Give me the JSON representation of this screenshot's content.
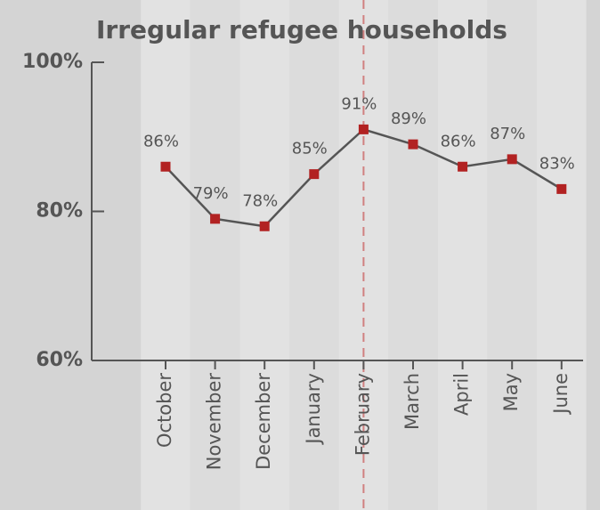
{
  "chart_data": {
    "type": "line",
    "title": "Irregular refugee households",
    "categories": [
      "October",
      "November",
      "December",
      "January",
      "February",
      "March",
      "April",
      "May",
      "June"
    ],
    "values": [
      86,
      79,
      78,
      85,
      91,
      89,
      86,
      87,
      83
    ],
    "value_labels": [
      "86%",
      "79%",
      "78%",
      "85%",
      "91%",
      "89%",
      "86%",
      "87%",
      "83%"
    ],
    "color": "#555555",
    "marker_color": "#b22222",
    "ylim": [
      60,
      100
    ],
    "yticks": [
      {
        "value": 60,
        "label": "60%"
      },
      {
        "value": 80,
        "label": "80%"
      },
      {
        "value": 100,
        "label": "100%"
      }
    ],
    "grid": false
  }
}
